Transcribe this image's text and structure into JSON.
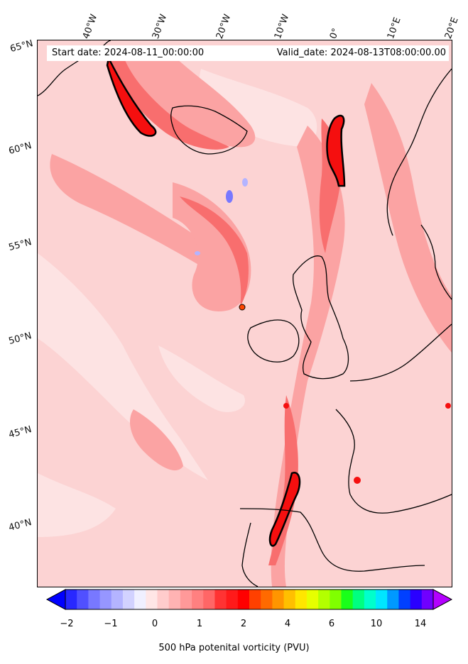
{
  "map": {
    "start_text": "Start date: 2024-08-11_00:00:00",
    "valid_text": "Valid_date: 2024-08-13T08:00:00.00",
    "lon_labels": [
      "40°W",
      "30°W",
      "20°W",
      "10°W",
      "0°",
      "10°E",
      "20°E"
    ],
    "lat_labels": [
      "65°N",
      "60°N",
      "55°N",
      "50°N",
      "45°N",
      "40°N"
    ],
    "colors": {
      "background": "#fcd3d3",
      "light": "#fde3e3",
      "mid": "#fba3a3",
      "strong": "#f86e6e",
      "intense": "#f50f0f",
      "peak": "#ff4500",
      "coast": "#000000"
    }
  },
  "colorbar": {
    "label": "500 hPa potenital vorticity (PVU)",
    "tick_labels": [
      "−2",
      "−1",
      "0",
      "1",
      "2",
      "4",
      "6",
      "10",
      "14"
    ],
    "colors": [
      "#0000ff",
      "#2828ff",
      "#5050ff",
      "#7878ff",
      "#9696ff",
      "#b4b4ff",
      "#d2d2ff",
      "#f0f0ff",
      "#ffe6e6",
      "#ffcccc",
      "#ffb3b3",
      "#ff9999",
      "#ff8080",
      "#ff6666",
      "#ff3333",
      "#ff1a1a",
      "#ff0000",
      "#ff4000",
      "#ff6a00",
      "#ff9500",
      "#ffbf00",
      "#ffe600",
      "#e6ff00",
      "#b3ff00",
      "#80ff00",
      "#1aff1a",
      "#00ff80",
      "#00ffcc",
      "#00e6ff",
      "#0099ff",
      "#0040ff",
      "#2a00ff",
      "#7000ff",
      "#b300ff"
    ]
  }
}
